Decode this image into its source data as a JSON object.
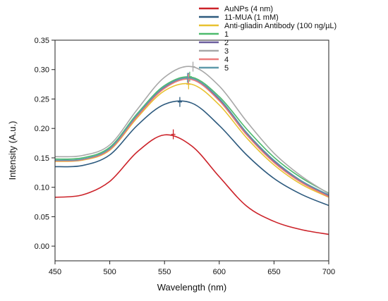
{
  "chart_data": {
    "type": "line",
    "xlabel": "Wavelength (nm)",
    "ylabel": "Intensity (A.u.)",
    "xlim": [
      450,
      700
    ],
    "ylim": [
      -0.025,
      0.35
    ],
    "xticks": [
      450,
      500,
      550,
      600,
      650,
      700
    ],
    "yticks": [
      0.0,
      0.05,
      0.1,
      0.15,
      0.2,
      0.25,
      0.3,
      0.35
    ],
    "ytick_labels": [
      "0.00",
      "0.05",
      "0.10",
      "0.15",
      "0.20",
      "0.25",
      "0.30",
      "0.35"
    ],
    "grid": false,
    "legend_position": "top-right",
    "x": [
      450,
      475,
      500,
      525,
      550,
      575,
      600,
      625,
      650,
      675,
      700
    ],
    "series": [
      {
        "name": "AuNPs (4 nm)",
        "color": "#cc2229",
        "values": [
          0.083,
          0.087,
          0.11,
          0.16,
          0.189,
          0.17,
          0.118,
          0.068,
          0.042,
          0.028,
          0.02
        ],
        "peak": [
          558,
          0.19
        ]
      },
      {
        "name": "11-MUA (1 mM)",
        "color": "#2d5a7e",
        "values": [
          0.135,
          0.137,
          0.155,
          0.205,
          0.241,
          0.243,
          0.205,
          0.155,
          0.115,
          0.088,
          0.069
        ],
        "peak": [
          564,
          0.245
        ]
      },
      {
        "name": "Anti-gliadin Antibody (100 ng/µL)",
        "color": "#e8c230",
        "values": [
          0.144,
          0.146,
          0.163,
          0.218,
          0.264,
          0.275,
          0.24,
          0.184,
          0.138,
          0.105,
          0.083
        ],
        "peak": [
          572,
          0.275
        ]
      },
      {
        "name": "1",
        "color": "#4dbb6d",
        "values": [
          0.148,
          0.15,
          0.168,
          0.225,
          0.273,
          0.287,
          0.254,
          0.199,
          0.151,
          0.116,
          0.09
        ],
        "peak": [
          573,
          0.288
        ]
      },
      {
        "name": "2",
        "color": "#6b5e9e",
        "values": [
          0.145,
          0.147,
          0.165,
          0.222,
          0.27,
          0.285,
          0.249,
          0.191,
          0.144,
          0.11,
          0.086
        ],
        "peak": [
          572,
          0.286
        ]
      },
      {
        "name": "3",
        "color": "#a8a8a8",
        "values": [
          0.152,
          0.154,
          0.172,
          0.232,
          0.287,
          0.305,
          0.272,
          0.212,
          0.158,
          0.119,
          0.089
        ],
        "peak": [
          576,
          0.305
        ]
      },
      {
        "name": "4",
        "color": "#ec7b7b",
        "values": [
          0.145,
          0.147,
          0.164,
          0.22,
          0.268,
          0.283,
          0.247,
          0.189,
          0.142,
          0.108,
          0.084
        ],
        "peak": [
          572,
          0.284
        ]
      },
      {
        "name": "5",
        "color": "#5f9aaa",
        "values": [
          0.146,
          0.148,
          0.166,
          0.223,
          0.271,
          0.285,
          0.251,
          0.193,
          0.146,
          0.111,
          0.087
        ],
        "peak": [
          571,
          0.286
        ]
      }
    ]
  }
}
